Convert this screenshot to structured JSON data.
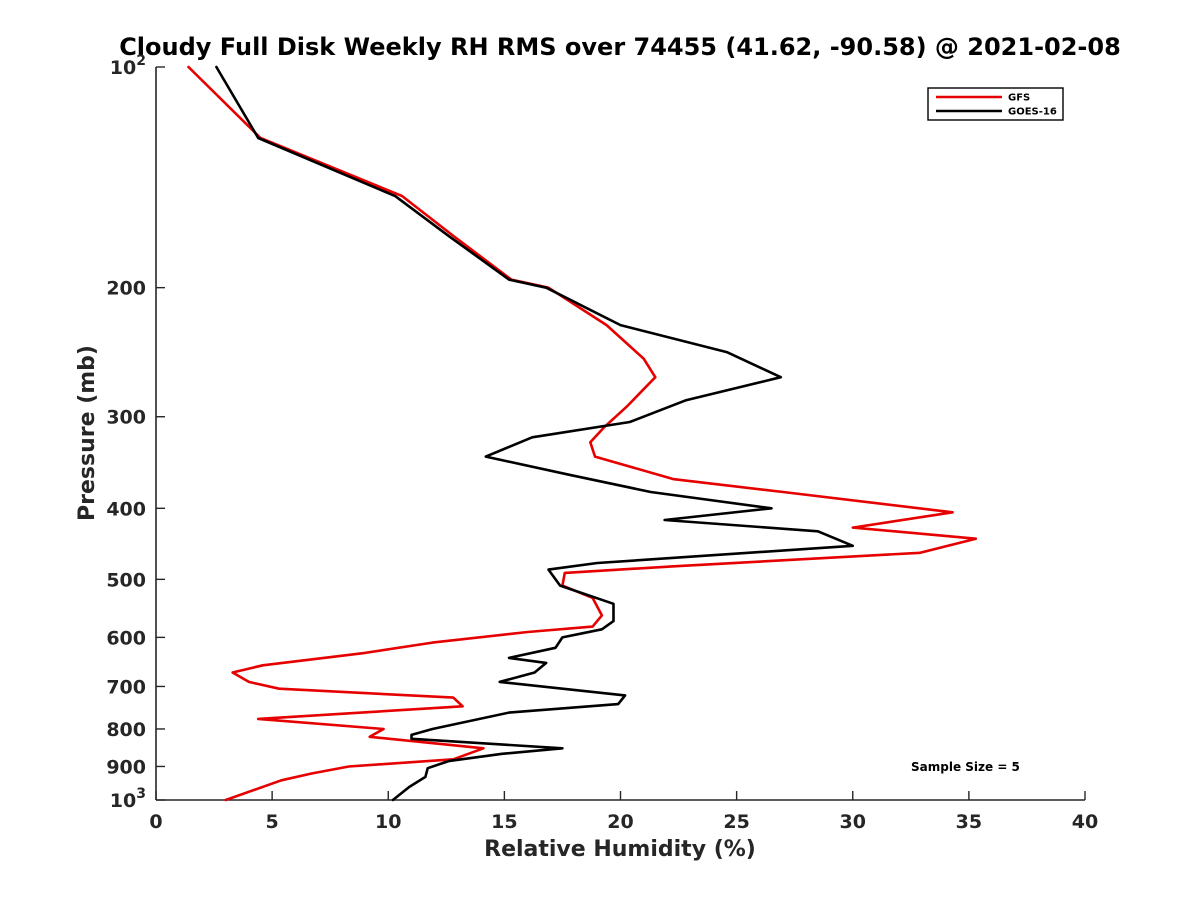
{
  "chart_data": {
    "type": "line",
    "title": "Cloudy Full Disk Weekly RH RMS over 74455 (41.62, -90.58) @ 2021-02-08",
    "xlabel": "Relative Humidity (%)",
    "ylabel": "Pressure (mb)",
    "xlim": [
      0,
      40
    ],
    "ylim": [
      100,
      1000
    ],
    "y_scale": "log",
    "y_reversed": true,
    "grid": false,
    "legend_position": "top-right",
    "x_ticks": [
      "0",
      "5",
      "10",
      "15",
      "20",
      "25",
      "30",
      "35",
      "40"
    ],
    "x_tick_values": [
      0,
      5,
      10,
      15,
      20,
      25,
      30,
      35,
      40
    ],
    "y_ticks": [
      {
        "value": 100,
        "base": "10",
        "exp": "2"
      },
      {
        "value": 200,
        "label": "200"
      },
      {
        "value": 300,
        "label": "300"
      },
      {
        "value": 400,
        "label": "400"
      },
      {
        "value": 500,
        "label": "500"
      },
      {
        "value": 600,
        "label": "600"
      },
      {
        "value": 700,
        "label": "700"
      },
      {
        "value": 800,
        "label": "800"
      },
      {
        "value": 900,
        "label": "900"
      },
      {
        "value": 1000,
        "base": "10",
        "exp": "3"
      }
    ],
    "annotation": "Sample Size = 5",
    "series": [
      {
        "name": "GFS",
        "color": "#e60000",
        "points": [
          [
            1.4,
            100
          ],
          [
            4.5,
            125
          ],
          [
            10.6,
            150
          ],
          [
            12.8,
            170
          ],
          [
            15.3,
            195
          ],
          [
            16.9,
            200
          ],
          [
            19.4,
            225
          ],
          [
            21.0,
            250
          ],
          [
            21.5,
            265
          ],
          [
            20.3,
            290
          ],
          [
            19.3,
            310
          ],
          [
            18.7,
            325
          ],
          [
            18.9,
            340
          ],
          [
            22.3,
            365
          ],
          [
            27.0,
            380
          ],
          [
            34.3,
            405
          ],
          [
            30.0,
            425
          ],
          [
            35.3,
            440
          ],
          [
            32.9,
            460
          ],
          [
            22.3,
            480
          ],
          [
            17.6,
            490
          ],
          [
            17.5,
            510
          ],
          [
            18.8,
            530
          ],
          [
            19.2,
            560
          ],
          [
            18.8,
            580
          ],
          [
            16.0,
            590
          ],
          [
            11.9,
            610
          ],
          [
            9.0,
            630
          ],
          [
            4.6,
            655
          ],
          [
            3.3,
            670
          ],
          [
            4.0,
            690
          ],
          [
            5.3,
            705
          ],
          [
            12.8,
            725
          ],
          [
            13.2,
            745
          ],
          [
            4.4,
            775
          ],
          [
            9.8,
            800
          ],
          [
            9.2,
            820
          ],
          [
            14.1,
            850
          ],
          [
            12.8,
            880
          ],
          [
            8.3,
            900
          ],
          [
            6.7,
            920
          ],
          [
            5.4,
            940
          ],
          [
            3.0,
            1000
          ]
        ]
      },
      {
        "name": "GOES-16",
        "color": "#000000",
        "points": [
          [
            2.6,
            100
          ],
          [
            4.4,
            125
          ],
          [
            10.3,
            150
          ],
          [
            12.6,
            170
          ],
          [
            15.2,
            195
          ],
          [
            16.8,
            200
          ],
          [
            20.0,
            225
          ],
          [
            24.6,
            245
          ],
          [
            26.9,
            265
          ],
          [
            22.8,
            285
          ],
          [
            20.4,
            305
          ],
          [
            16.2,
            320
          ],
          [
            14.2,
            340
          ],
          [
            17.8,
            360
          ],
          [
            21.3,
            380
          ],
          [
            26.5,
            400
          ],
          [
            21.9,
            415
          ],
          [
            28.5,
            430
          ],
          [
            30.0,
            450
          ],
          [
            19.0,
            475
          ],
          [
            16.9,
            485
          ],
          [
            17.4,
            510
          ],
          [
            19.7,
            540
          ],
          [
            19.7,
            570
          ],
          [
            19.2,
            585
          ],
          [
            17.5,
            600
          ],
          [
            17.2,
            620
          ],
          [
            15.2,
            640
          ],
          [
            16.8,
            650
          ],
          [
            16.3,
            670
          ],
          [
            14.8,
            690
          ],
          [
            20.2,
            720
          ],
          [
            19.9,
            740
          ],
          [
            15.2,
            760
          ],
          [
            11.9,
            800
          ],
          [
            11.0,
            815
          ],
          [
            11.0,
            825
          ],
          [
            17.5,
            850
          ],
          [
            14.9,
            865
          ],
          [
            12.6,
            885
          ],
          [
            11.7,
            905
          ],
          [
            11.6,
            930
          ],
          [
            10.9,
            960
          ],
          [
            10.2,
            1000
          ]
        ]
      }
    ]
  }
}
